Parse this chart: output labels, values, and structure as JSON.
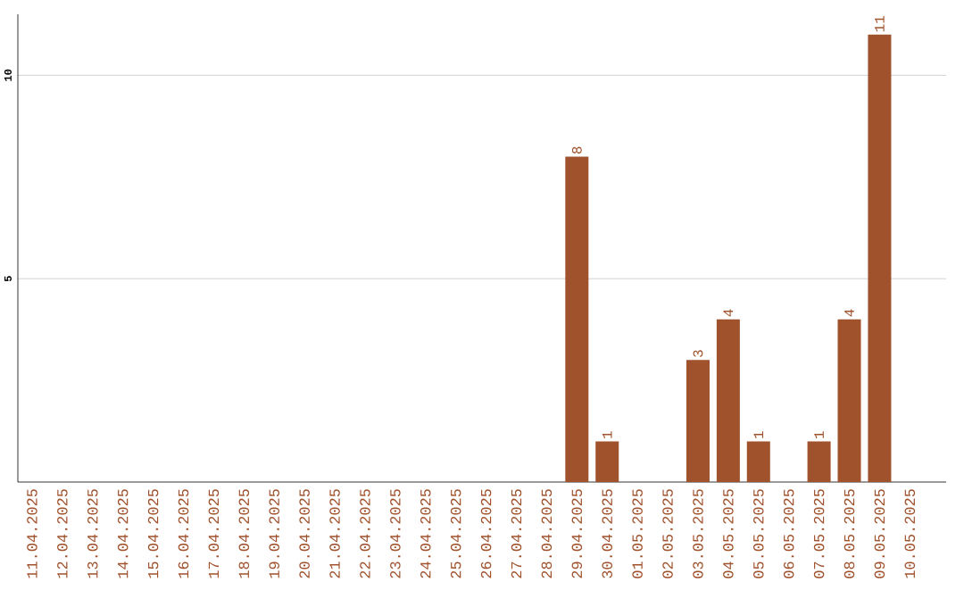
{
  "chart_data": {
    "type": "bar",
    "categories": [
      "11.04.2025",
      "12.04.2025",
      "13.04.2025",
      "14.04.2025",
      "15.04.2025",
      "16.04.2025",
      "17.04.2025",
      "18.04.2025",
      "19.04.2025",
      "20.04.2025",
      "21.04.2025",
      "22.04.2025",
      "23.04.2025",
      "24.04.2025",
      "25.04.2025",
      "26.04.2025",
      "27.04.2025",
      "28.04.2025",
      "29.04.2025",
      "30.04.2025",
      "01.05.2025",
      "02.05.2025",
      "03.05.2025",
      "04.05.2025",
      "05.05.2025",
      "06.05.2025",
      "07.05.2025",
      "08.05.2025",
      "09.05.2025",
      "10.05.2025"
    ],
    "values": [
      0,
      0,
      0,
      0,
      0,
      0,
      0,
      0,
      0,
      0,
      0,
      0,
      0,
      0,
      0,
      0,
      0,
      0,
      8,
      1,
      0,
      0,
      3,
      4,
      1,
      0,
      1,
      4,
      11,
      0
    ],
    "value_labels": [
      null,
      null,
      null,
      null,
      null,
      null,
      null,
      null,
      null,
      null,
      null,
      null,
      null,
      null,
      null,
      null,
      null,
      null,
      "8",
      "1",
      null,
      null,
      "3",
      "4",
      "1",
      null,
      "1",
      "4",
      "11",
      null
    ],
    "color": "#a0522d",
    "ylim": [
      0,
      11.5
    ],
    "yticks": [
      5,
      10
    ],
    "grid": "y"
  }
}
